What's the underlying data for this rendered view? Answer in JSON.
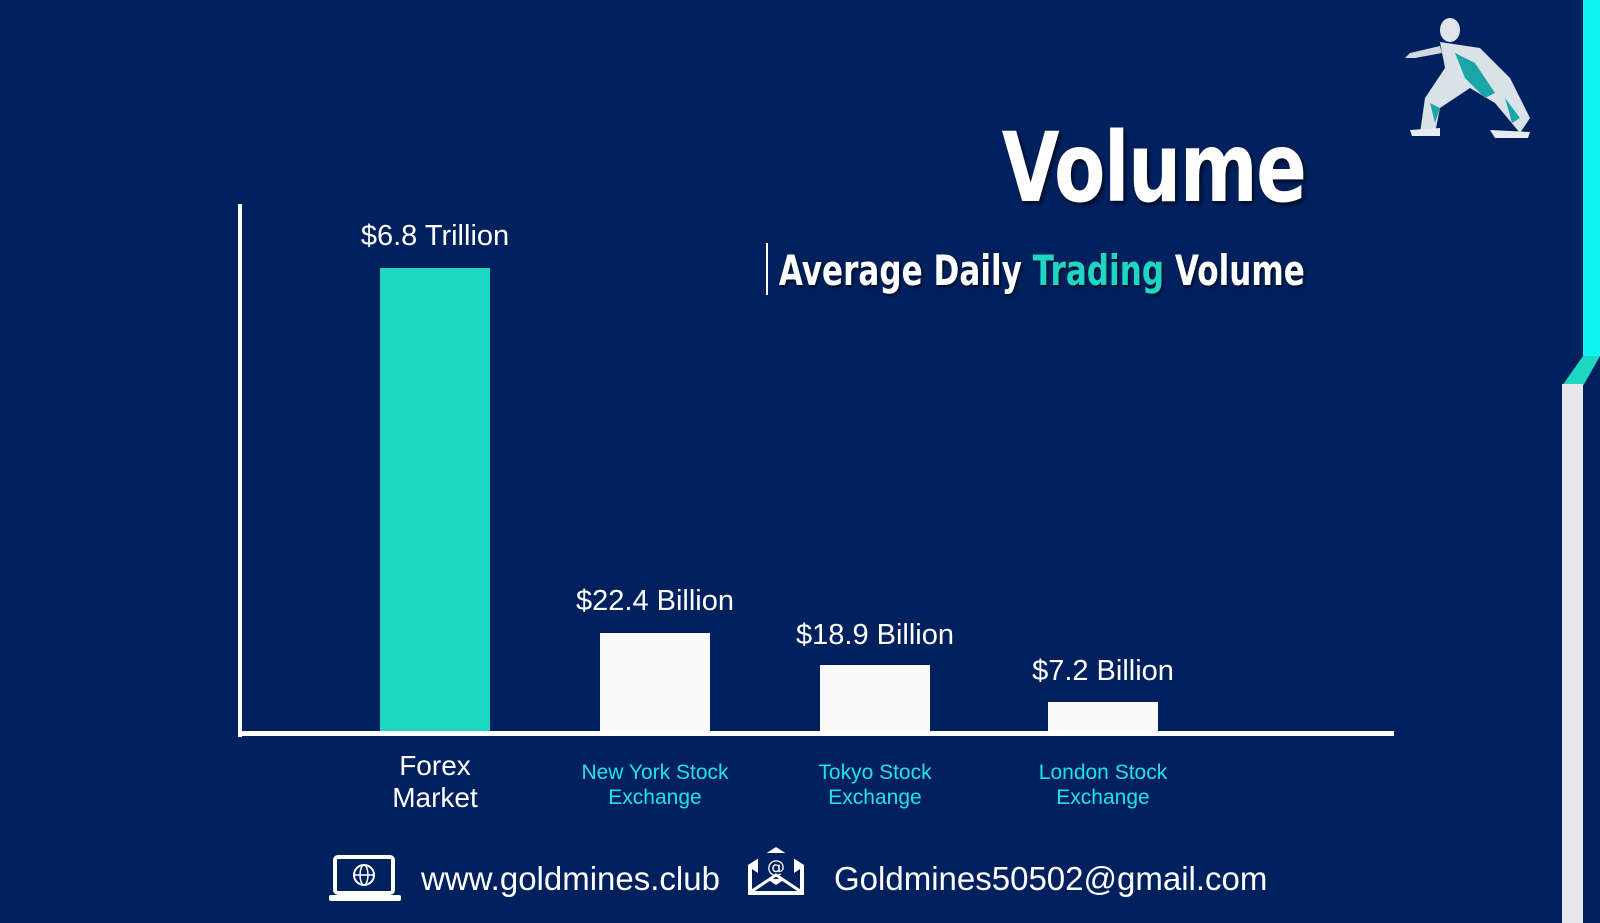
{
  "header": {
    "title": "Volume",
    "subtitle_parts": [
      "Average Daily ",
      "Trading",
      " Volume"
    ]
  },
  "footer": {
    "website": "www.goldmines.club",
    "email": "Goldmines50502@gmail.com"
  },
  "colors": {
    "background": "#01205e",
    "accent": "#1ed7c3",
    "bar_other": "#fafafa",
    "category_label": "#1de3e8"
  },
  "chart_data": {
    "type": "bar",
    "title": "Average Daily Trading Volume",
    "categories": [
      "Forex Market",
      "New York Stock Exchange",
      "Tokyo Stock Exchange",
      "London Stock Exchange"
    ],
    "category_lines": [
      [
        "Forex",
        "Market"
      ],
      [
        "New York Stock",
        "Exchange"
      ],
      [
        "Tokyo Stock",
        "Exchange"
      ],
      [
        "London Stock",
        "Exchange"
      ]
    ],
    "values": [
      6800,
      22.4,
      18.9,
      7.2
    ],
    "unit": "USD billions",
    "data_labels": [
      "$6.8 Trillion",
      "$22.4 Billion",
      "$18.9 Billion",
      "$7.2 Billion"
    ],
    "xlabel": "",
    "ylabel": "",
    "grid": false,
    "legend": "none"
  }
}
